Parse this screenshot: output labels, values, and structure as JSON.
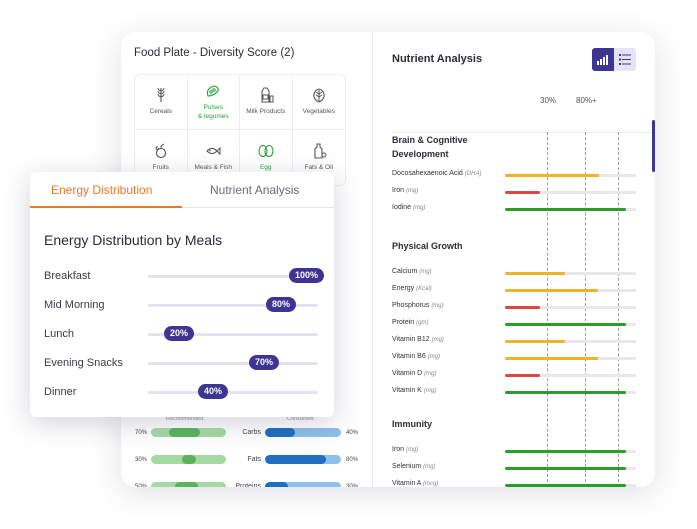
{
  "food_plate": {
    "title": "Food Plate - Diversity Score (2)",
    "items": [
      {
        "label": "Cereals",
        "icon": "wheat-icon",
        "active": false
      },
      {
        "label": "Pulses\n& legumes",
        "icon": "legumes-icon",
        "active": true
      },
      {
        "label": "Milk Products",
        "icon": "milk-icon",
        "active": false
      },
      {
        "label": "Vegetables",
        "icon": "vegetable-icon",
        "active": false
      },
      {
        "label": "Fruits",
        "icon": "fruit-icon",
        "active": false
      },
      {
        "label": "Meals & Fish",
        "icon": "fish-icon",
        "active": false
      },
      {
        "label": "Egg",
        "icon": "egg-icon",
        "active": true
      },
      {
        "label": "Fats & Oil",
        "icon": "oil-icon",
        "active": false
      }
    ]
  },
  "macros": {
    "left_heading": "Recommended",
    "right_heading": "Consumed",
    "rows": [
      {
        "name": "Carbs",
        "left_pct": "70%",
        "left_value": 70,
        "right_pct": "40%",
        "right_value": 40
      },
      {
        "name": "Fats",
        "left_pct": "30%",
        "left_value": 30,
        "right_pct": "80%",
        "right_value": 80
      },
      {
        "name": "Proteins",
        "left_pct": "50%",
        "left_value": 50,
        "right_pct": "30%",
        "right_value": 30
      }
    ]
  },
  "nutrient_analysis": {
    "title": "Nutrient Analysis",
    "markers": [
      "30%",
      "80%+"
    ],
    "colors": {
      "high": "#2a9d2a",
      "mid": "#f0b429",
      "low": "#e04545"
    },
    "sections": [
      {
        "title": "Brain & Cognitive Development",
        "items": [
          {
            "name": "Docosahexaenoic Acid",
            "unit": "(DHA)",
            "value": 0.72,
            "status": "mid"
          },
          {
            "name": "Iron",
            "unit": "(mg)",
            "value": 0.27,
            "status": "low"
          },
          {
            "name": "Iodine",
            "unit": "(mg)",
            "value": 0.92,
            "status": "high"
          }
        ]
      },
      {
        "title": "Physical Growth",
        "items": [
          {
            "name": "Calcium",
            "unit": "(mg)",
            "value": 0.46,
            "status": "mid"
          },
          {
            "name": "Energy",
            "unit": "(Kcal)",
            "value": 0.71,
            "status": "mid"
          },
          {
            "name": "Phosphorus",
            "unit": "(mg)",
            "value": 0.27,
            "status": "low"
          },
          {
            "name": "Protein",
            "unit": "(gm)",
            "value": 0.92,
            "status": "high"
          },
          {
            "name": "Vitamin B12",
            "unit": "(mg)",
            "value": 0.46,
            "status": "mid"
          },
          {
            "name": "Vitamin B6",
            "unit": "(mg)",
            "value": 0.71,
            "status": "mid"
          },
          {
            "name": "Vitamin D",
            "unit": "(mg)",
            "value": 0.27,
            "status": "low"
          },
          {
            "name": "Vitamin K",
            "unit": "(mg)",
            "value": 0.92,
            "status": "high"
          }
        ]
      },
      {
        "title": "Immunity",
        "items": [
          {
            "name": "Iron",
            "unit": "(mg)",
            "value": 0.92,
            "status": "high"
          },
          {
            "name": "Selenium",
            "unit": "(mg)",
            "value": 0.92,
            "status": "high"
          },
          {
            "name": "Vitamin A",
            "unit": "(mcg)",
            "value": 0.92,
            "status": "high"
          }
        ]
      }
    ]
  },
  "energy_card": {
    "tabs": [
      "Energy Distribution",
      "Nutrient Analysis"
    ],
    "active_tab": "Energy Distribution",
    "title": "Energy Distribution by Meals",
    "meals": [
      {
        "name": "Breakfast",
        "pct": "100%",
        "value": 100
      },
      {
        "name": "Mid Morning",
        "pct": "80%",
        "value": 80
      },
      {
        "name": "Lunch",
        "pct": "20%",
        "value": 20
      },
      {
        "name": "Evening Snacks",
        "pct": "70%",
        "value": 70
      },
      {
        "name": "Dinner",
        "pct": "40%",
        "value": 40
      }
    ]
  }
}
